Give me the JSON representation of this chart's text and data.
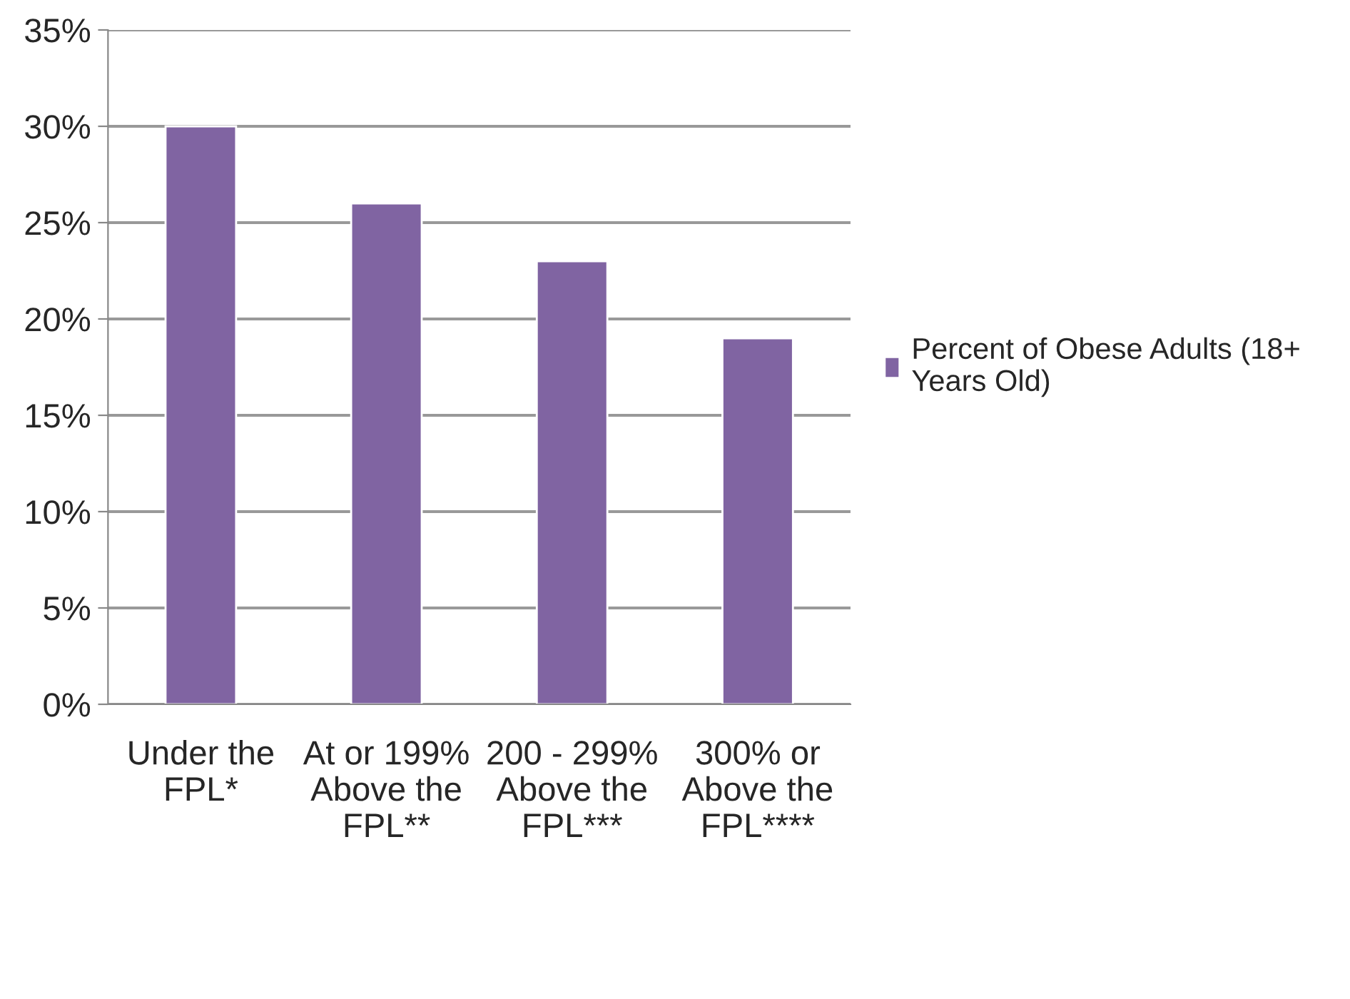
{
  "chart_data": {
    "type": "bar",
    "categories": [
      "Under the\nFPL*",
      "At or 199%\nAbove the\nFPL**",
      "200 - 299%\nAbove the\nFPL***",
      "300% or\nAbove the\nFPL****"
    ],
    "series": [
      {
        "name": "Percent of Obese Adults (18+\nYears Old)",
        "color": "#8064a2",
        "values": [
          30,
          26,
          23,
          19
        ]
      }
    ],
    "ylim": [
      0,
      35
    ],
    "yticks": [
      {
        "value": 0,
        "label": "0%"
      },
      {
        "value": 5,
        "label": "5%"
      },
      {
        "value": 10,
        "label": "10%"
      },
      {
        "value": 15,
        "label": "15%"
      },
      {
        "value": 20,
        "label": "20%"
      },
      {
        "value": 25,
        "label": "25%"
      },
      {
        "value": 30,
        "label": "30%"
      },
      {
        "value": 35,
        "label": "35%"
      }
    ],
    "grid": "y",
    "legend": "right"
  }
}
